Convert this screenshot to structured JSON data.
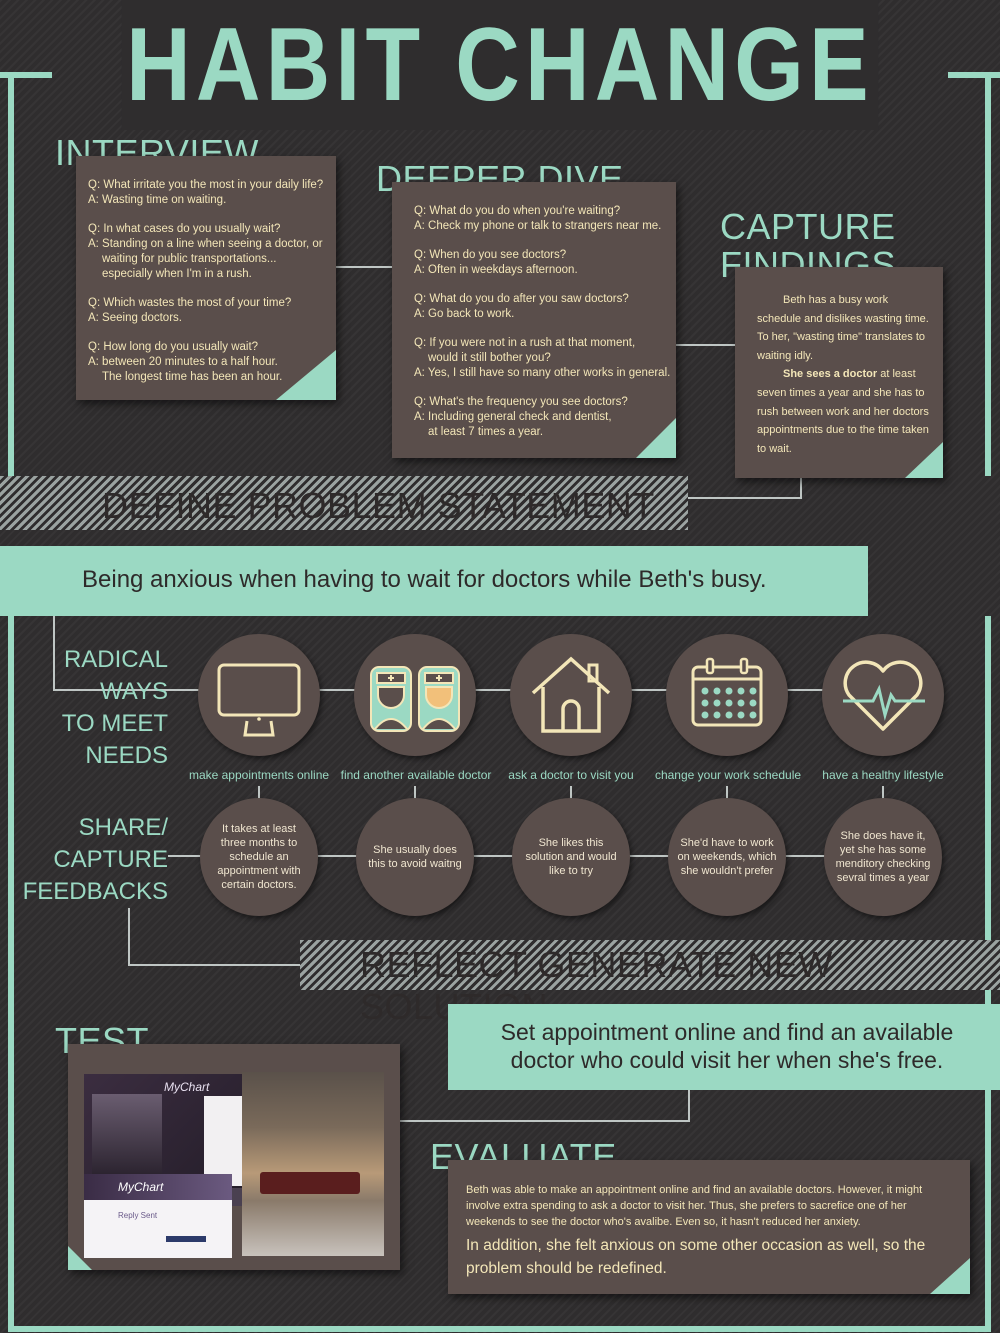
{
  "title": "HABIT CHANGE",
  "interview": {
    "heading": "INTERVIEW",
    "items": [
      {
        "q": "Q: What irritate you the most in your daily life?",
        "a": "A: Wasting time on waiting."
      },
      {
        "q": "Q: In what cases do you usually wait?",
        "a": "A: Standing on a line when seeing a doctor, or",
        "a2": "waiting for public transportations...",
        "a3": "especially when I'm in a rush."
      },
      {
        "q": "Q: Which wastes the most of your time?",
        "a": "A: Seeing doctors."
      },
      {
        "q": "Q: How long do you usually wait?",
        "a": "A: between 20 minutes to a half hour.",
        "a2": "The longest time has been an hour."
      }
    ]
  },
  "deeper_dive": {
    "heading": "DEEPER DIVE",
    "items": [
      {
        "q": "Q: What do you do when you're waiting?",
        "a": "A: Check my phone or talk to strangers near me."
      },
      {
        "q": "Q: When do you see doctors?",
        "a": "A: Often in weekdays afternoon."
      },
      {
        "q": "Q: What do you do after you saw doctors?",
        "a": "A: Go back to work."
      },
      {
        "q": "Q: If you were not in a rush at that moment,",
        "q2": "would it still bother you?",
        "a": "A: Yes, I still have so many other works in general."
      },
      {
        "q": "Q: What's the frequency you see doctors?",
        "a": "A: Including general check and dentist,",
        "a2": "at least 7 times a year."
      }
    ]
  },
  "capture_findings": {
    "heading_line1": "CAPTURE",
    "heading_line2": "FINDINGS",
    "para1": "Beth has a busy work schedule and dislikes wasting time. To her, \"wasting time\" translates to waiting idly.",
    "para2_bold": "She sees a doctor",
    "para2_rest": " at least seven times a year and she has to rush between work and her doctors appointments due to the time taken to wait."
  },
  "define_problem": {
    "heading": "DEFINE PROBLEM STATEMENT",
    "statement": "Being anxious when having to wait for doctors while Beth's busy."
  },
  "radical_ways": {
    "label_lines": [
      "RADICAL",
      "WAYS",
      "TO MEET",
      "NEEDS"
    ],
    "items": [
      {
        "icon": "monitor-icon",
        "label": "make appointments online"
      },
      {
        "icon": "nurses-icon",
        "label": "find another available doctor"
      },
      {
        "icon": "house-icon",
        "label": "ask a doctor to visit you"
      },
      {
        "icon": "calendar-icon",
        "label": "change your work schedule"
      },
      {
        "icon": "heart-pulse-icon",
        "label": "have a healthy lifestyle"
      }
    ]
  },
  "feedbacks": {
    "label_lines": [
      "SHARE/",
      "CAPTURE",
      "FEEDBACKS"
    ],
    "items": [
      "It takes at least three months to schedule an appointment with certain doctors.",
      "She usually does this to avoid waitng",
      "She likes this solution and would like to try",
      "She'd have to work on weekends, which she wouldn't prefer",
      "She does have it, yet she has some menditory checking sevral times a year"
    ]
  },
  "reflect": {
    "heading": "REFLECT GENERATE NEW SOLUTION",
    "solution_line1": "Set appointment online and find an available",
    "solution_line2": "doctor who could visit her when she's free."
  },
  "test": {
    "heading": "TEST",
    "screenshot1_brand": "MyChart",
    "screenshot2_brand": "MyChart",
    "screenshot2_title": "Reply Sent"
  },
  "evaluate": {
    "heading": "EVALUATE",
    "para1": "Beth was able to make an appointment online and find an available doctors. However, it might involve extra spending to ask a doctor to visit her. Thus, she prefers to sacrefice one of her weekends to see the doctor who's avalibe. Even so, it hasn't reduced her anxiety.",
    "para2": "In addition, she felt anxious on some other occasion as well, so the problem should be redefined."
  },
  "colors": {
    "accent": "#9bd9c3",
    "card": "#5a4e4b",
    "card_text": "#f3e6b8",
    "background": "#2f2d2e"
  }
}
